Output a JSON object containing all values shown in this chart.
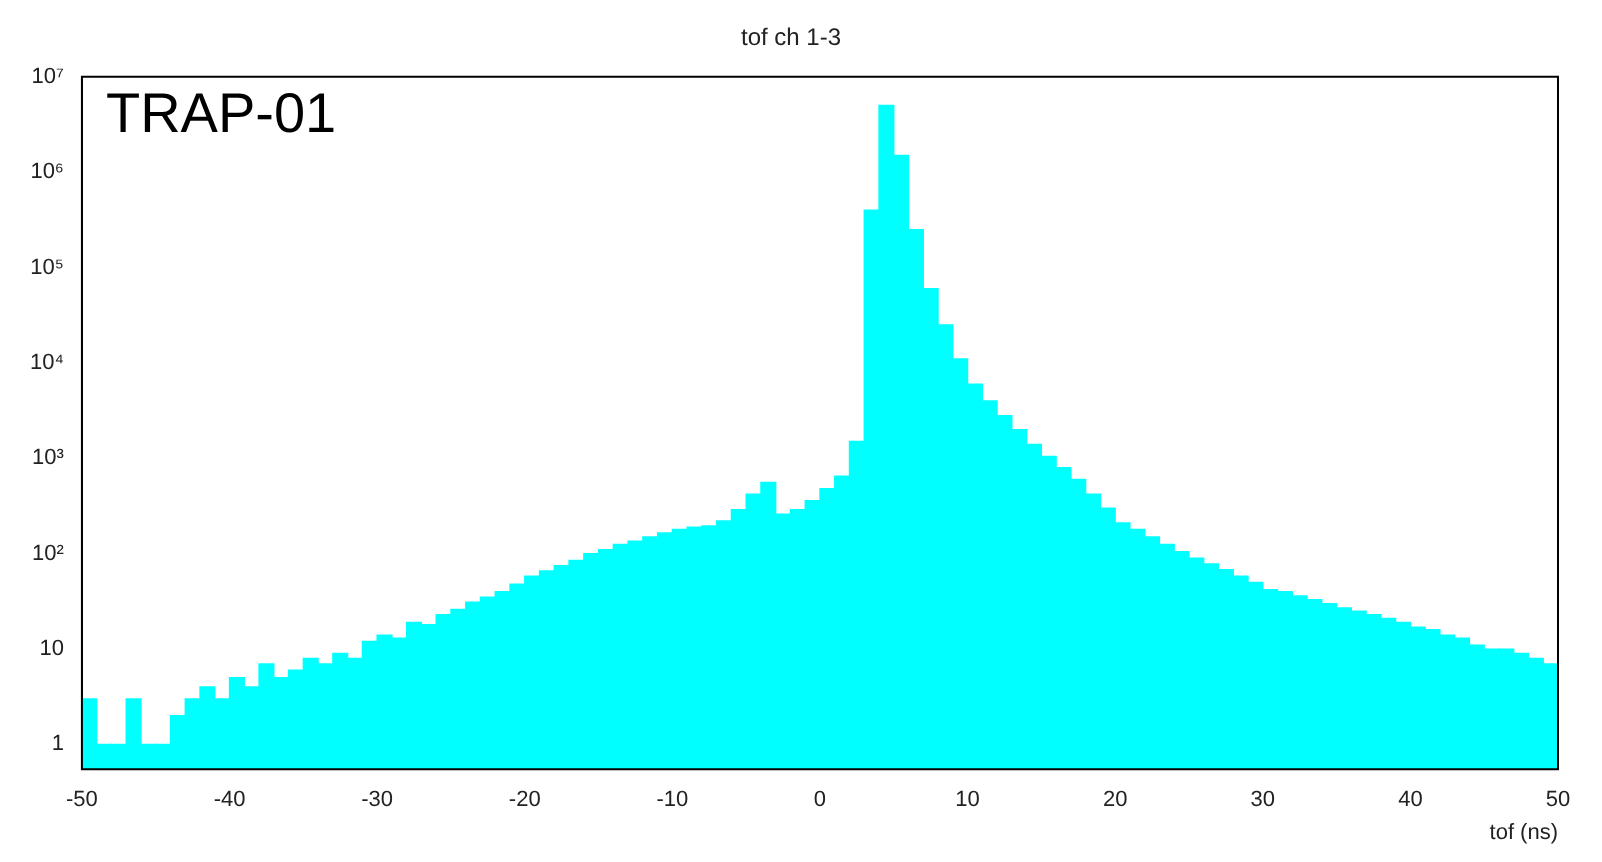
{
  "chart_data": {
    "type": "histogram",
    "title": "tof ch 1-3",
    "xlabel": "tof (ns)",
    "annotations": [
      "TRAP-01"
    ],
    "bins": [
      -50,
      -49,
      -48,
      -47,
      -46,
      -45,
      -44,
      -43,
      -42,
      -41,
      -40,
      -39,
      -38,
      -37,
      -36,
      -35,
      -34,
      -33,
      -32,
      -31,
      -30,
      -29,
      -28,
      -27,
      -26,
      -25,
      -24,
      -23,
      -22,
      -21,
      -20,
      -19,
      -18,
      -17,
      -16,
      -15,
      -14,
      -13,
      -12,
      -11,
      -10,
      -9,
      -8,
      -7,
      -6,
      -5,
      -4,
      -3,
      -2,
      -1,
      0,
      1,
      2,
      3,
      4,
      5,
      6,
      7,
      8,
      9,
      10,
      11,
      12,
      13,
      14,
      15,
      16,
      17,
      18,
      19,
      20,
      21,
      22,
      23,
      24,
      25,
      26,
      27,
      28,
      29,
      30,
      31,
      32,
      33,
      34,
      35,
      36,
      37,
      38,
      39,
      40,
      41,
      42,
      43,
      44,
      45,
      46,
      47,
      48,
      49,
      50
    ],
    "values": [
      3,
      1,
      1,
      3,
      1,
      1,
      2,
      3,
      4,
      3,
      5,
      4,
      7,
      5,
      6,
      8,
      7,
      9,
      8,
      12,
      14,
      13,
      19,
      18,
      23,
      26,
      31,
      35,
      40,
      48,
      58,
      66,
      75,
      85,
      100,
      110,
      125,
      135,
      150,
      165,
      180,
      190,
      195,
      220,
      290,
      420,
      560,
      260,
      290,
      360,
      480,
      650,
      1500,
      400000,
      5000000,
      1500000,
      250000,
      60000,
      25000,
      11000,
      6000,
      4000,
      2800,
      2000,
      1400,
      1050,
      800,
      600,
      420,
      300,
      210,
      180,
      150,
      125,
      105,
      90,
      78,
      68,
      58,
      50,
      42,
      40,
      36,
      33,
      30,
      27,
      25,
      23,
      21,
      19,
      17,
      16,
      14,
      13,
      11,
      10,
      10,
      9,
      8,
      7
    ],
    "color": "#00ffff",
    "log": "y",
    "xlim": [
      -50,
      50
    ],
    "xticks": [
      -50,
      -40,
      -30,
      -20,
      -10,
      0,
      10,
      20,
      30,
      40,
      50
    ],
    "ylim": [
      0.55,
      10000000
    ],
    "yticks": [
      1,
      10,
      {
        "value": 100,
        "label": "10²"
      },
      {
        "value": 1000,
        "label": "10³"
      },
      {
        "value": 10000,
        "label": "10⁴"
      },
      {
        "value": 100000,
        "label": "10⁵"
      },
      {
        "value": 1000000,
        "label": "10⁶"
      },
      {
        "value": 10000000,
        "label": "10⁷"
      }
    ]
  }
}
